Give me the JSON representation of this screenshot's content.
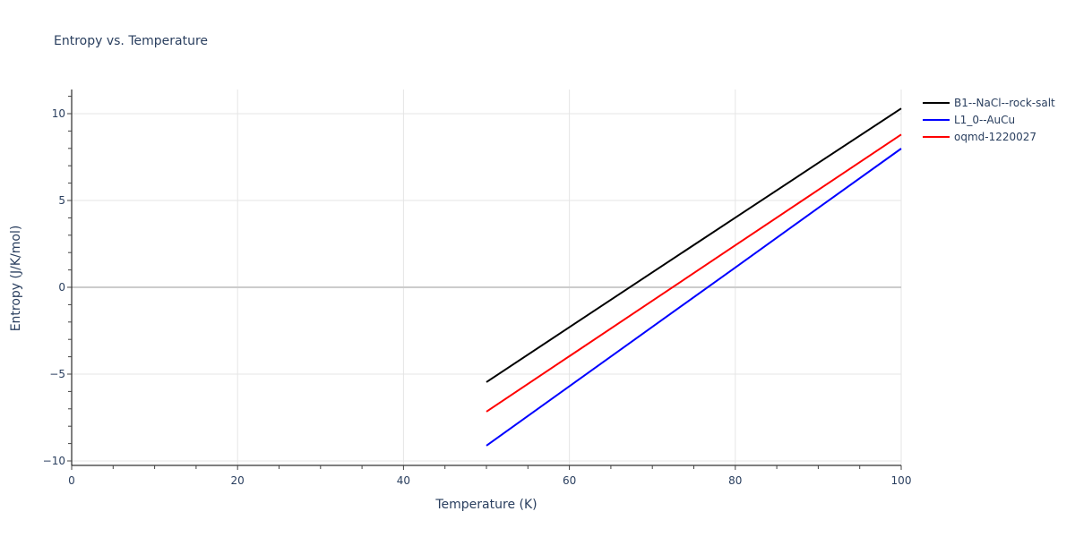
{
  "chart_data": {
    "type": "line",
    "title": "Entropy vs. Temperature",
    "xlabel": "Temperature (K)",
    "ylabel": "Entropy (J/K/mol)",
    "xlim": [
      0,
      100
    ],
    "ylim": [
      -10.3,
      11.2
    ],
    "xticks": [
      0,
      20,
      40,
      60,
      80,
      100
    ],
    "yticks": [
      -10,
      -5,
      0,
      5,
      10
    ],
    "ytick_labels": [
      "−10",
      "−5",
      "0",
      "5",
      "10"
    ],
    "grid": true,
    "legend_position": "right-top",
    "series": [
      {
        "name": "B1--NaCl--rock-salt",
        "color": "#000000",
        "x": [
          50,
          60,
          70,
          80,
          90,
          100
        ],
        "y": [
          -5.46,
          -2.3,
          0.86,
          4.01,
          7.16,
          10.3
        ]
      },
      {
        "name": "L1_0--AuCu",
        "color": "#0000ff",
        "x": [
          50,
          60,
          70,
          80,
          90,
          100
        ],
        "y": [
          -9.12,
          -5.7,
          -2.28,
          1.14,
          4.57,
          7.99
        ]
      },
      {
        "name": "oqmd-1220027",
        "color": "#ff0000",
        "x": [
          50,
          60,
          70,
          80,
          90,
          100
        ],
        "y": [
          -7.16,
          -3.97,
          -0.78,
          2.42,
          5.61,
          8.8
        ]
      }
    ]
  }
}
